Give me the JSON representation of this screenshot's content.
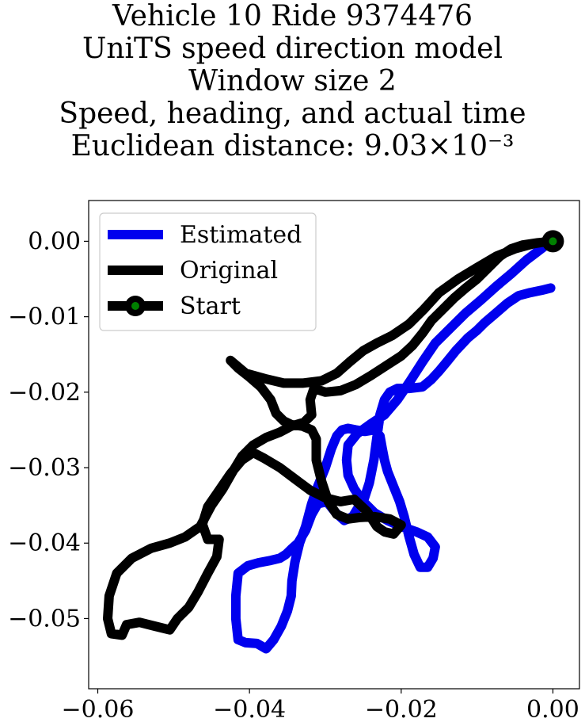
{
  "title_lines": {
    "line1": "Vehicle 10 Ride 9374476",
    "line2": "UniTS speed direction model",
    "line3": "Window size 2",
    "line4": "Speed, heading, and actual time",
    "line5": "Euclidean distance: 9.03×10⁻³"
  },
  "colors": {
    "estimated": "#0000ee",
    "original": "#000000",
    "start_marker_fill": "#008000"
  },
  "chart_data": {
    "type": "line",
    "title": "Vehicle 10 Ride 9374476 / UniTS speed direction model / Window size 2 / Speed, heading, and actual time / Euclidean distance: 9.03×10⁻³",
    "xlim": [
      -0.0612,
      0.0035
    ],
    "ylim": [
      -0.0593,
      0.0054
    ],
    "grid": false,
    "legend_position": "top-left",
    "x_ticks": [
      -0.06,
      -0.04,
      -0.02,
      0.0
    ],
    "x_tick_labels": [
      "−0.06",
      "−0.04",
      "−0.02",
      "0.00"
    ],
    "y_ticks": [
      0.0,
      -0.01,
      -0.02,
      -0.03,
      -0.04,
      -0.05
    ],
    "y_tick_labels": [
      "0.00",
      "−0.01",
      "−0.02",
      "−0.03",
      "−0.04",
      "−0.05"
    ],
    "legend": [
      "Estimated",
      "Original",
      "Start"
    ],
    "series": [
      {
        "name": "Estimated",
        "points": [
          [
            -0.0003,
            -0.0062
          ],
          [
            -0.0015,
            -0.0065
          ],
          [
            -0.003,
            -0.0068
          ],
          [
            -0.0045,
            -0.0072
          ],
          [
            -0.006,
            -0.0082
          ],
          [
            -0.0075,
            -0.0095
          ],
          [
            -0.009,
            -0.0108
          ],
          [
            -0.01,
            -0.0118
          ],
          [
            -0.0112,
            -0.0128
          ],
          [
            -0.0128,
            -0.0145
          ],
          [
            -0.014,
            -0.016
          ],
          [
            -0.015,
            -0.0172
          ],
          [
            -0.016,
            -0.0183
          ],
          [
            -0.0172,
            -0.0193
          ],
          [
            -0.019,
            -0.0195
          ],
          [
            -0.0205,
            -0.0195
          ],
          [
            -0.0215,
            -0.02
          ],
          [
            -0.0222,
            -0.021
          ],
          [
            -0.0228,
            -0.023
          ],
          [
            -0.0232,
            -0.026
          ],
          [
            -0.0236,
            -0.029
          ],
          [
            -0.0242,
            -0.032
          ],
          [
            -0.025,
            -0.0345
          ],
          [
            -0.0258,
            -0.0355
          ],
          [
            -0.0264,
            -0.0365
          ],
          [
            -0.0275,
            -0.037
          ],
          [
            -0.0286,
            -0.036
          ],
          [
            -0.0298,
            -0.0345
          ],
          [
            -0.031,
            -0.0348
          ],
          [
            -0.0318,
            -0.0362
          ],
          [
            -0.0326,
            -0.0383
          ],
          [
            -0.0336,
            -0.04
          ],
          [
            -0.0345,
            -0.0408
          ],
          [
            -0.0352,
            -0.0415
          ],
          [
            -0.036,
            -0.042
          ],
          [
            -0.0372,
            -0.0423
          ],
          [
            -0.0388,
            -0.0426
          ],
          [
            -0.0402,
            -0.043
          ],
          [
            -0.0415,
            -0.044
          ],
          [
            -0.0418,
            -0.047
          ],
          [
            -0.0418,
            -0.05
          ],
          [
            -0.0415,
            -0.0528
          ],
          [
            -0.0405,
            -0.0532
          ],
          [
            -0.039,
            -0.0533
          ],
          [
            -0.0378,
            -0.054
          ],
          [
            -0.0368,
            -0.0528
          ],
          [
            -0.0358,
            -0.051
          ],
          [
            -0.035,
            -0.049
          ],
          [
            -0.0345,
            -0.047
          ],
          [
            -0.0344,
            -0.045
          ],
          [
            -0.034,
            -0.0425
          ],
          [
            -0.0334,
            -0.04
          ],
          [
            -0.0326,
            -0.0378
          ],
          [
            -0.0318,
            -0.0348
          ],
          [
            -0.031,
            -0.0325
          ],
          [
            -0.03,
            -0.03
          ],
          [
            -0.0292,
            -0.0275
          ],
          [
            -0.0285,
            -0.0258
          ],
          [
            -0.0278,
            -0.025
          ],
          [
            -0.027,
            -0.0248
          ],
          [
            -0.026,
            -0.025
          ],
          [
            -0.0248,
            -0.0252
          ],
          [
            -0.0236,
            -0.025
          ],
          [
            -0.0228,
            -0.0258
          ],
          [
            -0.0225,
            -0.0275
          ],
          [
            -0.0222,
            -0.029
          ],
          [
            -0.0218,
            -0.0305
          ],
          [
            -0.021,
            -0.0325
          ],
          [
            -0.0202,
            -0.0345
          ],
          [
            -0.0196,
            -0.0365
          ],
          [
            -0.019,
            -0.039
          ],
          [
            -0.0183,
            -0.0415
          ],
          [
            -0.0175,
            -0.0432
          ],
          [
            -0.0165,
            -0.0432
          ],
          [
            -0.0158,
            -0.042
          ],
          [
            -0.0155,
            -0.0405
          ],
          [
            -0.0165,
            -0.0392
          ],
          [
            -0.018,
            -0.0385
          ],
          [
            -0.02,
            -0.0378
          ],
          [
            -0.0218,
            -0.037
          ],
          [
            -0.0235,
            -0.036
          ],
          [
            -0.025,
            -0.0345
          ],
          [
            -0.0262,
            -0.0328
          ],
          [
            -0.027,
            -0.031
          ],
          [
            -0.0272,
            -0.029
          ],
          [
            -0.027,
            -0.027
          ],
          [
            -0.0258,
            -0.0255
          ],
          [
            -0.024,
            -0.0242
          ],
          [
            -0.0222,
            -0.023
          ],
          [
            -0.0205,
            -0.021
          ],
          [
            -0.0188,
            -0.0185
          ],
          [
            -0.0172,
            -0.016
          ],
          [
            -0.0155,
            -0.0135
          ],
          [
            -0.0135,
            -0.0115
          ],
          [
            -0.0115,
            -0.0095
          ],
          [
            -0.0095,
            -0.0078
          ],
          [
            -0.0075,
            -0.006
          ],
          [
            -0.0055,
            -0.0043
          ],
          [
            -0.0035,
            -0.0025
          ],
          [
            -0.0018,
            -0.0012
          ],
          [
            -0.0005,
            -0.0002
          ]
        ]
      },
      {
        "name": "Original",
        "points": [
          [
            0.0,
            0.0
          ],
          [
            -0.002,
            -0.0002
          ],
          [
            -0.004,
            -0.0005
          ],
          [
            -0.0055,
            -0.001
          ],
          [
            -0.007,
            -0.002
          ],
          [
            -0.0085,
            -0.0035
          ],
          [
            -0.01,
            -0.005
          ],
          [
            -0.0115,
            -0.0062
          ],
          [
            -0.013,
            -0.0075
          ],
          [
            -0.0145,
            -0.009
          ],
          [
            -0.016,
            -0.0105
          ],
          [
            -0.0172,
            -0.0122
          ],
          [
            -0.0185,
            -0.0138
          ],
          [
            -0.02,
            -0.0152
          ],
          [
            -0.022,
            -0.0165
          ],
          [
            -0.024,
            -0.0178
          ],
          [
            -0.026,
            -0.019
          ],
          [
            -0.028,
            -0.0198
          ],
          [
            -0.03,
            -0.02
          ],
          [
            -0.0315,
            -0.0195
          ],
          [
            -0.032,
            -0.021
          ],
          [
            -0.0318,
            -0.023
          ],
          [
            -0.0328,
            -0.024
          ],
          [
            -0.0345,
            -0.0245
          ],
          [
            -0.036,
            -0.0253
          ],
          [
            -0.0378,
            -0.026
          ],
          [
            -0.0395,
            -0.027
          ],
          [
            -0.041,
            -0.0285
          ],
          [
            -0.0422,
            -0.0305
          ],
          [
            -0.0435,
            -0.0328
          ],
          [
            -0.045,
            -0.035
          ],
          [
            -0.0465,
            -0.0378
          ],
          [
            -0.0485,
            -0.0392
          ],
          [
            -0.0505,
            -0.04
          ],
          [
            -0.053,
            -0.0407
          ],
          [
            -0.0555,
            -0.042
          ],
          [
            -0.0575,
            -0.044
          ],
          [
            -0.0585,
            -0.047
          ],
          [
            -0.0587,
            -0.05
          ],
          [
            -0.0582,
            -0.052
          ],
          [
            -0.0568,
            -0.0522
          ],
          [
            -0.0562,
            -0.0508
          ],
          [
            -0.0545,
            -0.0505
          ],
          [
            -0.0525,
            -0.051
          ],
          [
            -0.0505,
            -0.0515
          ],
          [
            -0.0495,
            -0.05
          ],
          [
            -0.048,
            -0.0485
          ],
          [
            -0.0468,
            -0.0465
          ],
          [
            -0.0455,
            -0.044
          ],
          [
            -0.0443,
            -0.0418
          ],
          [
            -0.044,
            -0.0395
          ],
          [
            -0.0455,
            -0.0395
          ],
          [
            -0.0462,
            -0.0375
          ],
          [
            -0.0455,
            -0.0352
          ],
          [
            -0.044,
            -0.033
          ],
          [
            -0.0425,
            -0.0308
          ],
          [
            -0.041,
            -0.029
          ],
          [
            -0.0395,
            -0.028
          ],
          [
            -0.038,
            -0.0288
          ],
          [
            -0.036,
            -0.03
          ],
          [
            -0.034,
            -0.0315
          ],
          [
            -0.032,
            -0.033
          ],
          [
            -0.03,
            -0.034
          ],
          [
            -0.028,
            -0.0345
          ],
          [
            -0.0262,
            -0.0342
          ],
          [
            -0.0245,
            -0.0358
          ],
          [
            -0.0232,
            -0.0378
          ],
          [
            -0.0222,
            -0.0385
          ],
          [
            -0.021,
            -0.0388
          ],
          [
            -0.02,
            -0.0376
          ],
          [
            -0.0215,
            -0.0368
          ],
          [
            -0.0235,
            -0.0365
          ],
          [
            -0.0255,
            -0.0366
          ],
          [
            -0.027,
            -0.0368
          ],
          [
            -0.0285,
            -0.0362
          ],
          [
            -0.0296,
            -0.0345
          ],
          [
            -0.0305,
            -0.0318
          ],
          [
            -0.0312,
            -0.029
          ],
          [
            -0.0312,
            -0.0262
          ],
          [
            -0.0318,
            -0.025
          ],
          [
            -0.033,
            -0.0245
          ],
          [
            -0.0345,
            -0.0243
          ],
          [
            -0.0355,
            -0.0238
          ],
          [
            -0.0365,
            -0.0228
          ],
          [
            -0.0372,
            -0.021
          ],
          [
            -0.0385,
            -0.0193
          ],
          [
            -0.04,
            -0.018
          ],
          [
            -0.0415,
            -0.0168
          ],
          [
            -0.0425,
            -0.0158
          ],
          [
            -0.0405,
            -0.0175
          ],
          [
            -0.038,
            -0.0182
          ],
          [
            -0.0355,
            -0.0188
          ],
          [
            -0.033,
            -0.0188
          ],
          [
            -0.0305,
            -0.0185
          ],
          [
            -0.0285,
            -0.0175
          ],
          [
            -0.0268,
            -0.016
          ],
          [
            -0.025,
            -0.0145
          ],
          [
            -0.0232,
            -0.0135
          ],
          [
            -0.0212,
            -0.0125
          ],
          [
            -0.019,
            -0.011
          ],
          [
            -0.017,
            -0.009
          ],
          [
            -0.015,
            -0.0068
          ],
          [
            -0.0125,
            -0.005
          ],
          [
            -0.01,
            -0.0035
          ],
          [
            -0.0075,
            -0.002
          ],
          [
            -0.005,
            -0.001
          ],
          [
            -0.0025,
            -0.0003
          ],
          [
            -0.0005,
            0.0
          ]
        ]
      }
    ],
    "start_point": [
      0.0,
      0.0
    ]
  }
}
